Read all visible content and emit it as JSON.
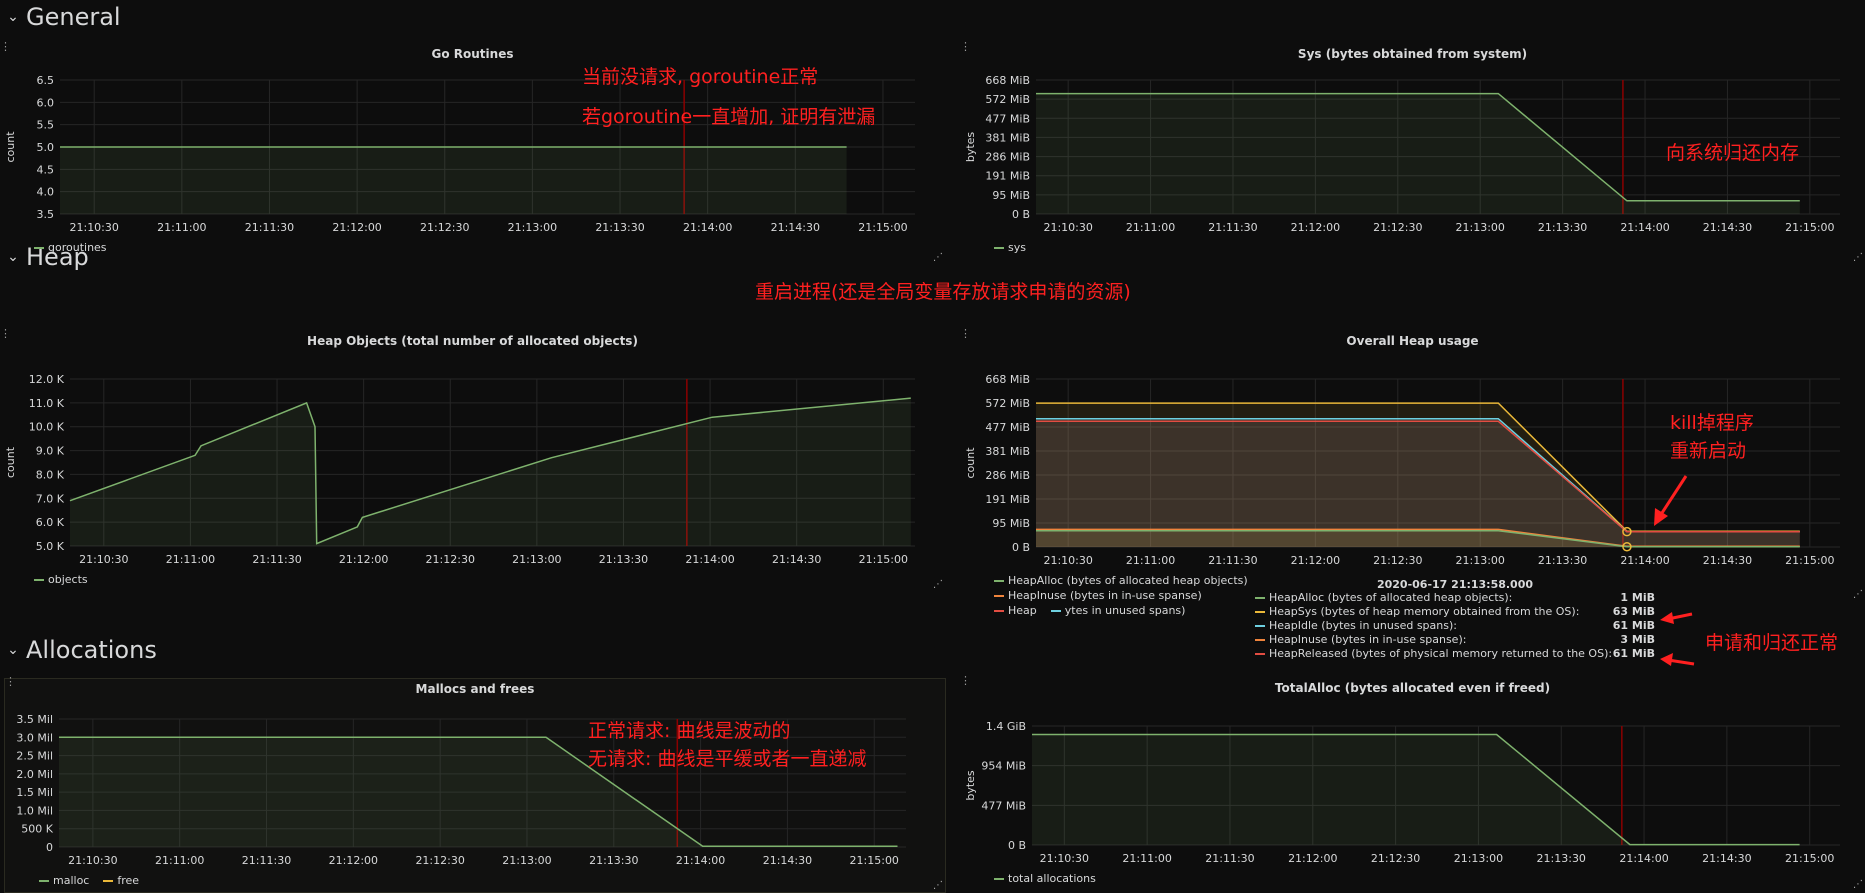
{
  "rows": {
    "general": "General",
    "heap": "Heap",
    "allocations": "Allocations"
  },
  "colors": {
    "green": "#7eb26d",
    "yellow": "#eab839",
    "blue": "#6ed0e0",
    "orange": "#ef843c",
    "red": "#e24d42",
    "purple": "#b877d9",
    "annotation_red": "#ff2020",
    "marker_red": "#8b0000"
  },
  "x_ticks": [
    "21:10:30",
    "21:11:00",
    "21:11:30",
    "21:12:00",
    "21:12:30",
    "21:13:00",
    "21:13:30",
    "21:14:00",
    "21:14:30",
    "21:15:00"
  ],
  "annotations": {
    "goroutine_1": "当前没请求, goroutine正常",
    "goroutine_2": "若goroutine一直增加, 证明有泄漏",
    "sys_return": "向系统归还内存",
    "restart": "重启进程(还是全局变量存放请求申请的资源)",
    "kill_1": "kill掉程序",
    "kill_2": "重新启动",
    "alloc_normal": "申请和归还正常",
    "mallocs_1": "正常请求: 曲线是波动的",
    "mallocs_2": "无请求: 曲线是平缓或者一直递减"
  },
  "tooltip": {
    "time": "2020-06-17 21:13:58.000",
    "rows": [
      {
        "label": "HeapAlloc (bytes of allocated heap objects):",
        "value": "1 MiB",
        "color": "#7eb26d"
      },
      {
        "label": "HeapSys (bytes of heap memory obtained from the OS):",
        "value": "63 MiB",
        "color": "#eab839"
      },
      {
        "label": "HeapIdle (bytes in unused spans):",
        "value": "61 MiB",
        "color": "#6ed0e0"
      },
      {
        "label": "HeapInuse (bytes in in-use spanse):",
        "value": "3 MiB",
        "color": "#ef843c"
      },
      {
        "label": "HeapReleased (bytes of physical memory returned to the OS):",
        "value": "61 MiB",
        "color": "#e24d42"
      }
    ]
  },
  "panels": {
    "goroutines": {
      "title": "Go Routines",
      "ylabel": "count",
      "legend": [
        "goroutines"
      ],
      "chart_data": {
        "type": "area",
        "yticks": [
          "6.5",
          "6.0",
          "5.5",
          "5.0",
          "4.5",
          "4.0",
          "3.5"
        ],
        "ylim": [
          3.5,
          6.5
        ],
        "series": [
          {
            "name": "goroutines",
            "color": "#7eb26d",
            "points": [
              [
                0,
                5
              ],
              [
                0.92,
                5
              ]
            ]
          }
        ]
      }
    },
    "sys": {
      "title": "Sys (bytes obtained from system)",
      "ylabel": "bytes",
      "legend": [
        "sys"
      ],
      "chart_data": {
        "type": "area",
        "yticks": [
          "668 MiB",
          "572 MiB",
          "477 MiB",
          "381 MiB",
          "286 MiB",
          "191 MiB",
          "95 MiB",
          "0 B"
        ],
        "ylim": [
          0,
          668
        ],
        "series": [
          {
            "name": "sys",
            "color": "#7eb26d",
            "points": [
              [
                0,
                600
              ],
              [
                0.575,
                600
              ],
              [
                0.735,
                66
              ],
              [
                0.95,
                66
              ]
            ]
          }
        ]
      }
    },
    "heap_objects": {
      "title": "Heap Objects (total number of allocated objects)",
      "ylabel": "count",
      "legend": [
        "objects"
      ],
      "chart_data": {
        "type": "area",
        "yticks": [
          "12.0 K",
          "11.0 K",
          "10.0 K",
          "9.0 K",
          "8.0 K",
          "7.0 K",
          "6.0 K",
          "5.0 K"
        ],
        "ylim": [
          5000,
          12000
        ],
        "series": [
          {
            "name": "objects",
            "color": "#7eb26d",
            "points": [
              [
                0,
                6900
              ],
              [
                0.148,
                8800
              ],
              [
                0.155,
                9200
              ],
              [
                0.28,
                11000
              ],
              [
                0.29,
                10000
              ],
              [
                0.292,
                5100
              ],
              [
                0.34,
                5800
              ],
              [
                0.346,
                6200
              ],
              [
                0.57,
                8700
              ],
              [
                0.76,
                10400
              ],
              [
                0.995,
                11200
              ]
            ]
          }
        ]
      }
    },
    "heap_usage": {
      "title": "Overall Heap usage",
      "ylabel": "count",
      "legend": [
        "HeapAlloc (bytes of allocated heap objects)",
        "HeapInuse (bytes in in-use spanse)",
        "Heap",
        "ytes in unused spans)"
      ],
      "chart_data": {
        "type": "area",
        "yticks": [
          "668 MiB",
          "572 MiB",
          "477 MiB",
          "381 MiB",
          "286 MiB",
          "191 MiB",
          "95 MiB",
          "0 B"
        ],
        "ylim": [
          0,
          668
        ],
        "series": [
          {
            "name": "HeapSys",
            "color": "#eab839",
            "points": [
              [
                0,
                572
              ],
              [
                0.575,
                572
              ],
              [
                0.735,
                63
              ],
              [
                0.95,
                63
              ]
            ]
          },
          {
            "name": "HeapIdle",
            "color": "#6ed0e0",
            "points": [
              [
                0,
                510
              ],
              [
                0.575,
                510
              ],
              [
                0.735,
                61
              ],
              [
                0.95,
                61
              ]
            ]
          },
          {
            "name": "HeapReleased",
            "color": "#e24d42",
            "points": [
              [
                0,
                500
              ],
              [
                0.575,
                500
              ],
              [
                0.735,
                61
              ],
              [
                0.95,
                61
              ]
            ]
          },
          {
            "name": "HeapInuse",
            "color": "#ef843c",
            "points": [
              [
                0,
                70
              ],
              [
                0.575,
                70
              ],
              [
                0.735,
                3
              ],
              [
                0.95,
                3
              ]
            ]
          },
          {
            "name": "HeapAlloc",
            "color": "#7eb26d",
            "points": [
              [
                0,
                65
              ],
              [
                0.575,
                65
              ],
              [
                0.735,
                1
              ],
              [
                0.95,
                1
              ]
            ]
          }
        ]
      }
    },
    "mallocs": {
      "title": "Mallocs and frees",
      "legend": [
        "malloc",
        "free"
      ],
      "chart_data": {
        "type": "area",
        "yticks": [
          "3.5 Mil",
          "3.0 Mil",
          "2.5 Mil",
          "2.0 Mil",
          "1.5 Mil",
          "1.0 Mil",
          "500 K",
          "0"
        ],
        "ylim": [
          0,
          3.5
        ],
        "series": [
          {
            "name": "malloc",
            "color": "#7eb26d",
            "points": [
              [
                0,
                3.0
              ],
              [
                0.575,
                3.0
              ],
              [
                0.76,
                0.02
              ],
              [
                0.99,
                0.02
              ]
            ]
          }
        ]
      }
    },
    "total_alloc": {
      "title": "TotalAlloc (bytes allocated even if freed)",
      "ylabel": "bytes",
      "legend": [
        "total allocations"
      ],
      "chart_data": {
        "type": "area",
        "yticks": [
          "1.4 GiB",
          "954 MiB",
          "477 MiB",
          "0 B"
        ],
        "ylim": [
          0,
          1.4
        ],
        "series": [
          {
            "name": "total allocations",
            "color": "#7eb26d",
            "points": [
              [
                0,
                1.3
              ],
              [
                0.575,
                1.3
              ],
              [
                0.74,
                0.005
              ],
              [
                0.95,
                0.005
              ]
            ]
          }
        ]
      }
    }
  }
}
